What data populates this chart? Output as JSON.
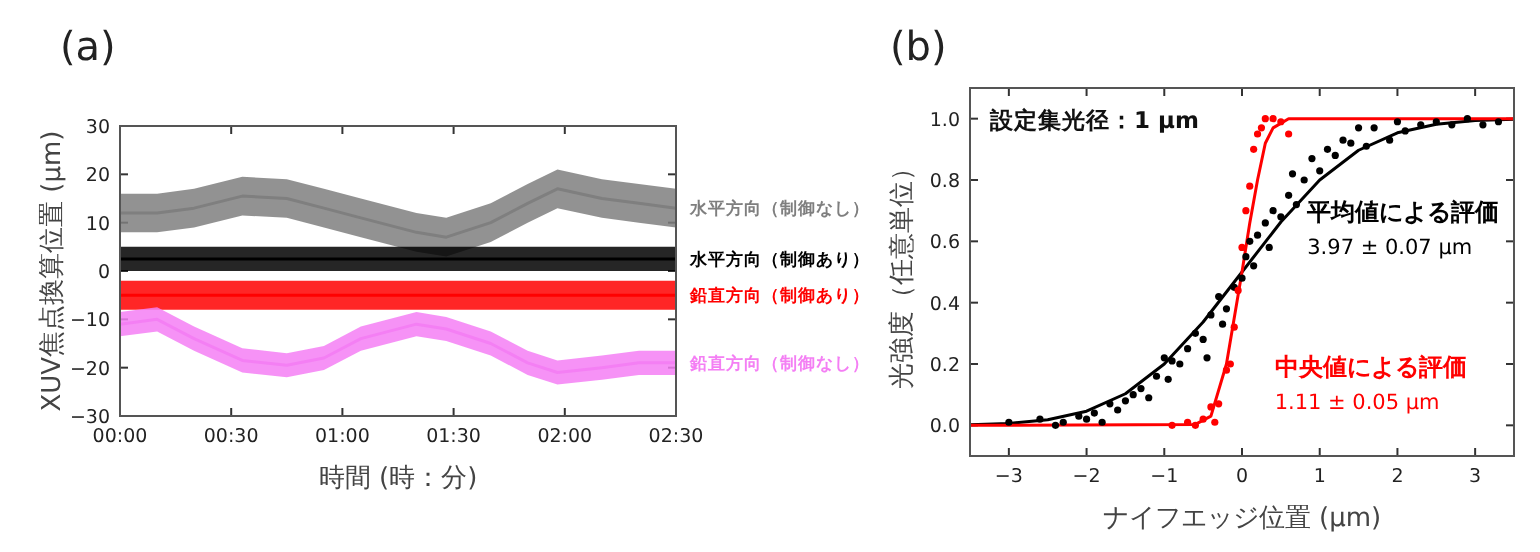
{
  "chart_data": [
    {
      "type": "line",
      "title": "(a)",
      "xlabel": "時間 (時：分)",
      "ylabel": "XUV焦点換算位置 (µm)",
      "xlim": [
        0,
        2.5
      ],
      "ylim": [
        -30,
        30
      ],
      "xticks": [
        {
          "value": 0,
          "label": "00:00"
        },
        {
          "value": 0.5,
          "label": "00:30"
        },
        {
          "value": 1,
          "label": "01:00"
        },
        {
          "value": 1.5,
          "label": "01:30"
        },
        {
          "value": 2,
          "label": "02:00"
        },
        {
          "value": 2.5,
          "label": "02:30"
        }
      ],
      "yticks": [
        {
          "value": -30,
          "label": "−30"
        },
        {
          "value": -20,
          "label": "−20"
        },
        {
          "value": -10,
          "label": "−10"
        },
        0,
        10,
        20,
        30
      ],
      "x": [
        0,
        0.167,
        0.333,
        0.55,
        0.75,
        0.917,
        1.083,
        1.333,
        1.467,
        1.667,
        1.833,
        1.967,
        2.167,
        2.333,
        2.5
      ],
      "series": [
        {
          "name": "水平方向（制御なし）",
          "color": "#7f7f7f",
          "values": [
            12,
            12,
            13,
            15.5,
            15,
            13,
            11,
            8,
            7,
            10,
            14,
            17,
            15,
            14,
            13
          ],
          "lower": [
            8,
            8,
            9,
            11.5,
            11,
            9,
            7,
            4,
            3,
            6,
            10,
            13,
            11,
            10,
            9
          ],
          "upper": [
            16,
            16,
            17,
            19.5,
            19,
            17,
            15,
            12,
            11,
            14,
            18,
            21,
            19,
            18,
            17
          ]
        },
        {
          "name": "水平方向（制御あり）",
          "color": "#000000",
          "values": [
            2.5,
            2.5,
            2.5,
            2.5,
            2.5,
            2.5,
            2.5,
            2.5,
            2.5,
            2.5,
            2.5,
            2.5,
            2.5,
            2.5,
            2.5
          ],
          "lower": [
            0,
            0,
            0,
            0,
            0,
            0,
            0,
            0,
            0,
            0,
            0,
            0,
            0,
            0,
            0
          ],
          "upper": [
            5,
            5,
            5,
            5,
            5,
            5,
            5,
            5,
            5,
            5,
            5,
            5,
            5,
            5,
            5
          ]
        },
        {
          "name": "鉛直方向（制御あり）",
          "color": "#ff0000",
          "values": [
            -5,
            -5,
            -5,
            -5,
            -5,
            -5,
            -5,
            -5,
            -5,
            -5,
            -5,
            -5,
            -5,
            -5,
            -5
          ],
          "lower": [
            -8,
            -8,
            -8,
            -8,
            -8,
            -8,
            -8,
            -8,
            -8,
            -8,
            -8,
            -8,
            -8,
            -8,
            -8
          ],
          "upper": [
            -2,
            -2,
            -2,
            -2,
            -2,
            -2,
            -2,
            -2,
            -2,
            -2,
            -2,
            -2,
            -2,
            -2,
            -2
          ]
        },
        {
          "name": "鉛直方向（制御なし）",
          "color": "#f47ff4",
          "values": [
            -11,
            -10,
            -14,
            -18.5,
            -19.5,
            -18,
            -14,
            -11,
            -12,
            -15,
            -19,
            -21,
            -20,
            -19,
            -19
          ],
          "lower": [
            -13.5,
            -12.5,
            -16.5,
            -21,
            -22,
            -20.5,
            -16.5,
            -13.5,
            -14.5,
            -17.5,
            -21.5,
            -23.5,
            -22.5,
            -21.5,
            -21.5
          ],
          "upper": [
            -8.5,
            -7.5,
            -11.5,
            -16,
            -17,
            -15.5,
            -11.5,
            -8.5,
            -9.5,
            -12.5,
            -16.5,
            -18.5,
            -17.5,
            -16.5,
            -16.5
          ]
        }
      ]
    },
    {
      "type": "scatter",
      "title": "(b)",
      "xlabel": "ナイフエッジ位置 (µm)",
      "ylabel": "光強度（任意単位）",
      "xlim": [
        -3.5,
        3.5
      ],
      "ylim": [
        -0.1,
        1.1
      ],
      "xticks": [
        {
          "value": -3,
          "label": "−3"
        },
        {
          "value": -2,
          "label": "−2"
        },
        {
          "value": -1,
          "label": "−1"
        },
        0,
        1,
        2,
        3
      ],
      "yticks": [
        {
          "value": 0,
          "label": "0.0"
        },
        {
          "value": 0.2,
          "label": "0.2"
        },
        {
          "value": 0.4,
          "label": "0.4"
        },
        {
          "value": 0.6,
          "label": "0.6"
        },
        {
          "value": 0.8,
          "label": "0.8"
        },
        {
          "value": 1,
          "label": "1.0"
        }
      ],
      "annotations": [
        "設定集光径：1 µm"
      ],
      "series": [
        {
          "type": "scatter",
          "color": "#000000",
          "x": [
            -3,
            -2.6,
            -2.4,
            -2.3,
            -2.1,
            -2.0,
            -1.9,
            -1.8,
            -1.7,
            -1.6,
            -1.5,
            -1.4,
            -1.3,
            -1.2,
            -1.1,
            -1.0,
            -0.95,
            -0.9,
            -0.8,
            -0.7,
            -0.6,
            -0.5,
            -0.45,
            -0.4,
            -0.3,
            -0.25,
            -0.2,
            -0.1,
            0,
            0.05,
            0.1,
            0.15,
            0.2,
            0.3,
            0.35,
            0.4,
            0.5,
            0.6,
            0.65,
            0.7,
            0.8,
            0.9,
            1.0,
            1.1,
            1.2,
            1.3,
            1.4,
            1.5,
            1.6,
            1.7,
            1.9,
            2.0,
            2.1,
            2.3,
            2.5,
            2.7,
            2.9,
            3.1,
            3.3
          ],
          "values": [
            0.01,
            0.02,
            0.0,
            0.01,
            0.03,
            0.02,
            0.04,
            0.01,
            0.07,
            0.05,
            0.08,
            0.1,
            0.12,
            0.09,
            0.16,
            0.22,
            0.15,
            0.21,
            0.2,
            0.25,
            0.3,
            0.28,
            0.22,
            0.36,
            0.42,
            0.33,
            0.38,
            0.45,
            0.48,
            0.55,
            0.6,
            0.52,
            0.62,
            0.66,
            0.58,
            0.7,
            0.68,
            0.75,
            0.82,
            0.72,
            0.8,
            0.87,
            0.83,
            0.9,
            0.88,
            0.93,
            0.92,
            0.97,
            0.91,
            0.97,
            0.93,
            0.99,
            0.96,
            0.98,
            0.99,
            0.98,
            1.0,
            0.98,
            0.99
          ]
        },
        {
          "type": "scatter",
          "color": "#ff0000",
          "x": [
            -0.9,
            -0.7,
            -0.6,
            -0.5,
            -0.4,
            -0.35,
            -0.3,
            -0.2,
            -0.15,
            -0.1,
            -0.05,
            0,
            0.05,
            0.1,
            0.15,
            0.2,
            0.25,
            0.3,
            0.4,
            0.5,
            0.6
          ],
          "values": [
            0.0,
            0.01,
            0.0,
            0.02,
            0.06,
            0.01,
            0.07,
            0.18,
            0.2,
            0.32,
            0.44,
            0.58,
            0.7,
            0.78,
            0.9,
            0.95,
            0.97,
            1.0,
            1.0,
            0.99,
            0.95
          ]
        },
        {
          "type": "line",
          "name": "平均値による評価\n3.97 ± 0.07 µm",
          "color": "#000000",
          "x": [
            -3.5,
            -3,
            -2.5,
            -2,
            -1.5,
            -1,
            -0.5,
            0,
            0.5,
            1,
            1.5,
            2,
            2.5,
            3,
            3.5
          ],
          "values": [
            0.002,
            0.006,
            0.018,
            0.046,
            0.103,
            0.2,
            0.337,
            0.5,
            0.663,
            0.8,
            0.897,
            0.954,
            0.982,
            0.994,
            0.998
          ]
        },
        {
          "type": "line",
          "name": "中央値による評価\n1.11 ± 0.05 µm",
          "color": "#ff0000",
          "x": [
            -3.5,
            -0.6,
            -0.4,
            -0.2,
            0,
            0.1,
            0.2,
            0.3,
            0.4,
            0.6,
            3.5
          ],
          "values": [
            0,
            0.003,
            0.03,
            0.2,
            0.5,
            0.66,
            0.8,
            0.92,
            0.97,
            1.0,
            1.0
          ]
        }
      ]
    }
  ]
}
